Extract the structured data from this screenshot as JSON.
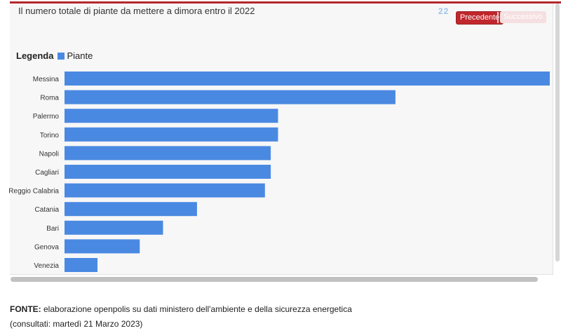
{
  "header": {
    "title": "Il numero totale di piante da mettere a dimora entro il 2022",
    "nav_icon": "22",
    "prev_label": "Precedente",
    "next_label": "Successivo"
  },
  "legend": {
    "title": "Legenda",
    "label": "Piante"
  },
  "colors": {
    "accent": "#b3282d",
    "bar": "#4a89e2",
    "prev_button": "#c0272d",
    "next_button_disabled": "#f5dfe0"
  },
  "chart_data": {
    "type": "bar",
    "orientation": "horizontal",
    "categories": [
      "Messina",
      "Roma",
      "Palermo",
      "Torino",
      "Napoli",
      "Cagliari",
      "Reggio Calabria",
      "Catania",
      "Bari",
      "Genova",
      "Venezia"
    ],
    "series": [
      {
        "name": "Piante",
        "values": [
          100,
          68.2,
          44,
          44,
          42.5,
          42.5,
          41.3,
          27.3,
          20.3,
          15.5,
          6.8
        ]
      }
    ],
    "xlim": [
      0,
      100
    ],
    "grid": false,
    "legend_position": "top-left"
  },
  "source": {
    "label": "FONTE:",
    "text": " elaborazione openpolis su dati ministero dell'ambiente e della sicurezza energetica",
    "consulted": "(consultati: martedì 21 Marzo 2023)"
  }
}
